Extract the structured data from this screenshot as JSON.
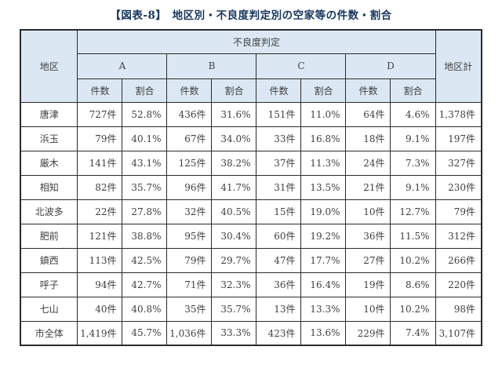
{
  "title": "【図表-8】　地区別・不良度判定別の空家等の件数・割合",
  "colors": {
    "header_bg": "#dbe8f4",
    "border": "#2b2b2b",
    "title_text": "#17365d",
    "body_text": "#3f3f3f",
    "page_bg": "#ffffff"
  },
  "table": {
    "corner_header": "地区",
    "group_header": "不良度判定",
    "total_header": "地区計",
    "grades": {
      "a": "A",
      "b": "B",
      "c": "C",
      "d": "D"
    },
    "sub_headers": {
      "count": "件数",
      "ratio": "割合"
    },
    "rows": [
      {
        "district": "唐津",
        "values": [
          "727件",
          "52.8%",
          "436件",
          "31.6%",
          "151件",
          "11.0%",
          "64件",
          "4.6%"
        ],
        "total": "1,378件"
      },
      {
        "district": "浜玉",
        "values": [
          "79件",
          "40.1%",
          "67件",
          "34.0%",
          "33件",
          "16.8%",
          "18件",
          "9.1%"
        ],
        "total": "197件"
      },
      {
        "district": "厳木",
        "values": [
          "141件",
          "43.1%",
          "125件",
          "38.2%",
          "37件",
          "11.3%",
          "24件",
          "7.3%"
        ],
        "total": "327件"
      },
      {
        "district": "相知",
        "values": [
          "82件",
          "35.7%",
          "96件",
          "41.7%",
          "31件",
          "13.5%",
          "21件",
          "9.1%"
        ],
        "total": "230件"
      },
      {
        "district": "北波多",
        "values": [
          "22件",
          "27.8%",
          "32件",
          "40.5%",
          "15件",
          "19.0%",
          "10件",
          "12.7%"
        ],
        "total": "79件"
      },
      {
        "district": "肥前",
        "values": [
          "121件",
          "38.8%",
          "95件",
          "30.4%",
          "60件",
          "19.2%",
          "36件",
          "11.5%"
        ],
        "total": "312件"
      },
      {
        "district": "鎮西",
        "values": [
          "113件",
          "42.5%",
          "79件",
          "29.7%",
          "47件",
          "17.7%",
          "27件",
          "10.2%"
        ],
        "total": "266件"
      },
      {
        "district": "呼子",
        "values": [
          "94件",
          "42.7%",
          "71件",
          "32.3%",
          "36件",
          "16.4%",
          "19件",
          "8.6%"
        ],
        "total": "220件"
      },
      {
        "district": "七山",
        "values": [
          "40件",
          "40.8%",
          "35件",
          "35.7%",
          "13件",
          "13.3%",
          "10件",
          "10.2%"
        ],
        "total": "98件"
      },
      {
        "district": "市全体",
        "values": [
          "1,419件",
          "45.7%",
          "1,036件",
          "33.3%",
          "423件",
          "13.6%",
          "229件",
          "7.4%"
        ],
        "total": "3,107件"
      }
    ]
  }
}
